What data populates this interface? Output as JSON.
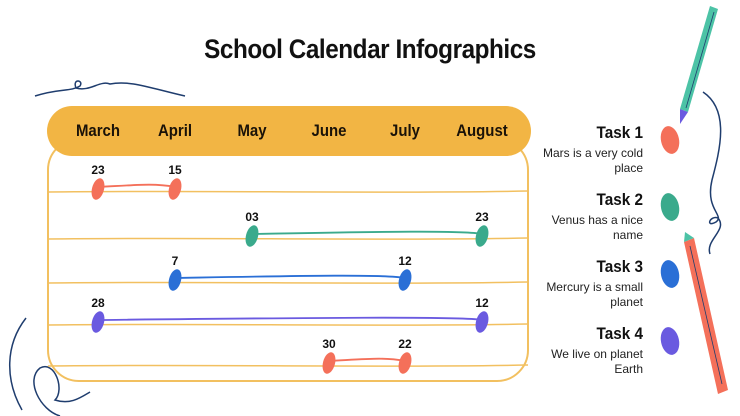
{
  "title": "School Calendar Infographics",
  "months": [
    "March",
    "April",
    "May",
    "June",
    "July",
    "August"
  ],
  "events": [
    {
      "start_month": 0,
      "start_day": "23",
      "end_month": 1,
      "end_day": "15",
      "color": "#f4705a"
    },
    {
      "start_month": 2,
      "start_day": "03",
      "end_month": 5,
      "end_day": "23",
      "color": "#3aaa8c"
    },
    {
      "start_month": 1,
      "start_day": "7",
      "end_month": 4,
      "end_day": "12",
      "color": "#2a6fd6"
    },
    {
      "start_month": 0,
      "start_day": "28",
      "end_month": 5,
      "end_day": "12",
      "color": "#6a5ae0"
    },
    {
      "start_month": 3,
      "start_day": "30",
      "end_month": 4,
      "end_day": "22",
      "color": "#f4705a"
    }
  ],
  "tasks": [
    {
      "title": "Task 1",
      "text": "Mars is a very cold place",
      "color": "#f4705a"
    },
    {
      "title": "Task 2",
      "text": "Venus has a nice name",
      "color": "#3aaa8c"
    },
    {
      "title": "Task 3",
      "text": "Mercury is a small planet",
      "color": "#2a6fd6"
    },
    {
      "title": "Task 4",
      "text": "We live on planet Earth",
      "color": "#6a5ae0"
    }
  ],
  "colors": {
    "header": "#f2b544",
    "line": "#f2c060",
    "scribble": "#1f3d6e"
  }
}
